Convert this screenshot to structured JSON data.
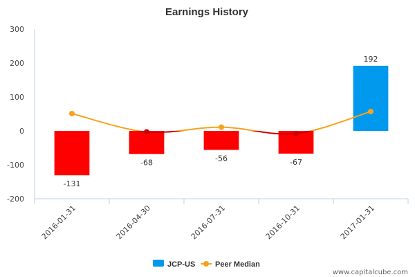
{
  "chart_data": {
    "type": "bar",
    "title": "Earnings History",
    "categories": [
      "2016-01-31",
      "2016-04-30",
      "2016-07-31",
      "2016-10-31",
      "2017-01-31"
    ],
    "series": [
      {
        "name": "JCP-US",
        "type": "bar",
        "values": [
          -131,
          -68,
          -56,
          -67,
          192
        ],
        "color": "#0099ee",
        "negative_color": "#ff0000"
      },
      {
        "name": "Peer Median",
        "type": "line",
        "values": [
          51,
          -3,
          11,
          -8,
          57
        ],
        "color": "#f7a21b",
        "negative_color": "#cc0000"
      }
    ],
    "data_labels": [
      "-131",
      "-68",
      "-56",
      "-67",
      "192"
    ],
    "y_ticks": [
      300,
      200,
      100,
      0,
      -100,
      -200
    ],
    "ylim": [
      -200,
      300
    ],
    "xlabel": "",
    "ylabel": "",
    "grid": false,
    "legend": "bottom-center"
  },
  "credit": "www.capitalcube.com"
}
